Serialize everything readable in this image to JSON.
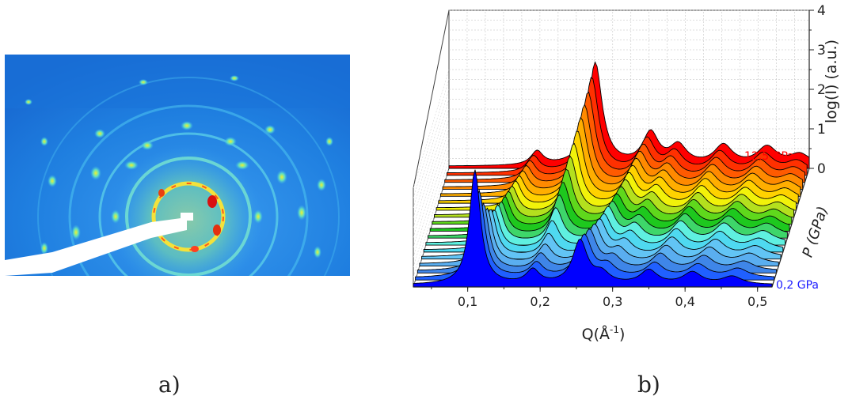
{
  "panels": {
    "a": {
      "label": "a)"
    },
    "b": {
      "label": "b)"
    }
  },
  "chart_data": {
    "type": "area",
    "xlabel_main": "Q(Å",
    "xlabel_sup": "-1",
    "xlabel_close": ")",
    "ylabel": "log(I) (a.u.)",
    "zlabel": "P (GPa)",
    "x_ticks": [
      "0,1",
      "0,2",
      "0,3",
      "0,4",
      "0,5"
    ],
    "x_tick_values": [
      0.1,
      0.2,
      0.3,
      0.4,
      0.5
    ],
    "y_ticks": [
      "0",
      "1",
      "2",
      "3",
      "4"
    ],
    "y_tick_values": [
      0,
      1,
      2,
      3,
      4
    ],
    "xlim": [
      0.025,
      0.52
    ],
    "ylim": [
      0,
      4
    ],
    "grid": true,
    "pressure_labels": {
      "low": "0,2 GPa",
      "high": "12,5 GPa"
    },
    "pressure_range": [
      0.2,
      12.5
    ],
    "colors": [
      "#0000ff",
      "#2060ff",
      "#3f86e8",
      "#5aaef0",
      "#62c4f5",
      "#4fd9f0",
      "#5ff0e0",
      "#3ed66a",
      "#1ec81e",
      "#5fd81c",
      "#b4e01e",
      "#f2f20a",
      "#ffd200",
      "#ffae00",
      "#ff8a00",
      "#ff5a00",
      "#ff3000",
      "#ff0000"
    ],
    "label_colors": {
      "low": "#1a1aff",
      "high": "#ff0000"
    },
    "series": [
      {
        "peaks": [
          [
            0.11,
            2.9
          ],
          [
            0.19,
            0.35
          ],
          [
            0.255,
            1.1
          ],
          [
            0.285,
            0.25
          ],
          [
            0.35,
            0.35
          ],
          [
            0.41,
            0.3
          ],
          [
            0.465,
            0.2
          ]
        ]
      },
      {
        "peaks": [
          [
            0.113,
            2.2
          ],
          [
            0.192,
            0.35
          ],
          [
            0.258,
            1.05
          ],
          [
            0.29,
            0.28
          ],
          [
            0.355,
            0.35
          ],
          [
            0.415,
            0.32
          ],
          [
            0.47,
            0.22
          ]
        ]
      },
      {
        "peaks": [
          [
            0.116,
            1.7
          ],
          [
            0.195,
            0.4
          ],
          [
            0.262,
            1.0
          ],
          [
            0.295,
            0.3
          ],
          [
            0.36,
            0.4
          ],
          [
            0.42,
            0.35
          ],
          [
            0.475,
            0.22
          ]
        ]
      },
      {
        "peaks": [
          [
            0.118,
            1.4
          ],
          [
            0.198,
            0.45
          ],
          [
            0.266,
            0.95
          ],
          [
            0.3,
            0.32
          ],
          [
            0.365,
            0.42
          ],
          [
            0.425,
            0.38
          ],
          [
            0.48,
            0.24
          ]
        ]
      },
      {
        "peaks": [
          [
            0.12,
            1.2
          ],
          [
            0.2,
            0.55
          ],
          [
            0.27,
            0.9
          ],
          [
            0.305,
            0.35
          ],
          [
            0.37,
            0.45
          ],
          [
            0.43,
            0.4
          ],
          [
            0.485,
            0.25
          ]
        ]
      },
      {
        "peaks": [
          [
            0.122,
            1.0
          ],
          [
            0.202,
            0.7
          ],
          [
            0.273,
            0.85
          ],
          [
            0.31,
            0.38
          ],
          [
            0.373,
            0.48
          ],
          [
            0.433,
            0.42
          ],
          [
            0.487,
            0.26
          ]
        ]
      },
      {
        "peaks": [
          [
            0.124,
            0.95
          ],
          [
            0.204,
            0.85
          ],
          [
            0.276,
            0.85
          ],
          [
            0.313,
            0.4
          ],
          [
            0.376,
            0.5
          ],
          [
            0.436,
            0.45
          ],
          [
            0.49,
            0.27
          ]
        ]
      },
      {
        "peaks": [
          [
            0.126,
            0.85
          ],
          [
            0.206,
            1.0
          ],
          [
            0.279,
            0.8
          ],
          [
            0.316,
            0.42
          ],
          [
            0.379,
            0.5
          ],
          [
            0.439,
            0.45
          ],
          [
            0.492,
            0.28
          ]
        ]
      },
      {
        "peaks": [
          [
            0.128,
            0.8
          ],
          [
            0.208,
            1.15
          ],
          [
            0.282,
            0.8
          ],
          [
            0.319,
            0.44
          ],
          [
            0.382,
            0.5
          ],
          [
            0.442,
            0.46
          ],
          [
            0.494,
            0.28
          ]
        ]
      },
      {
        "peaks": [
          [
            0.13,
            0.75
          ],
          [
            0.21,
            1.3
          ],
          [
            0.285,
            0.8
          ],
          [
            0.322,
            0.45
          ],
          [
            0.385,
            0.5
          ],
          [
            0.445,
            0.46
          ],
          [
            0.496,
            0.28
          ]
        ]
      },
      {
        "peaks": [
          [
            0.132,
            0.7
          ],
          [
            0.212,
            1.45
          ],
          [
            0.288,
            0.8
          ],
          [
            0.325,
            0.46
          ],
          [
            0.388,
            0.5
          ],
          [
            0.448,
            0.46
          ],
          [
            0.498,
            0.28
          ]
        ]
      },
      {
        "peaks": [
          [
            0.134,
            0.65
          ],
          [
            0.214,
            1.6
          ],
          [
            0.29,
            0.8
          ],
          [
            0.328,
            0.47
          ],
          [
            0.39,
            0.5
          ],
          [
            0.45,
            0.46
          ],
          [
            0.5,
            0.28
          ]
        ]
      },
      {
        "peaks": [
          [
            0.136,
            0.6
          ],
          [
            0.216,
            1.75
          ],
          [
            0.292,
            0.8
          ],
          [
            0.33,
            0.48
          ],
          [
            0.392,
            0.5
          ],
          [
            0.452,
            0.46
          ],
          [
            0.502,
            0.28
          ]
        ]
      },
      {
        "peaks": [
          [
            0.138,
            0.55
          ],
          [
            0.218,
            1.9
          ],
          [
            0.294,
            0.8
          ],
          [
            0.332,
            0.48
          ],
          [
            0.394,
            0.5
          ],
          [
            0.454,
            0.46
          ],
          [
            0.503,
            0.28
          ]
        ]
      },
      {
        "peaks": [
          [
            0.14,
            0.5
          ],
          [
            0.22,
            2.05
          ],
          [
            0.296,
            0.8
          ],
          [
            0.334,
            0.48
          ],
          [
            0.396,
            0.5
          ],
          [
            0.456,
            0.46
          ],
          [
            0.504,
            0.28
          ]
        ]
      },
      {
        "peaks": [
          [
            0.142,
            0.45
          ],
          [
            0.222,
            2.2
          ],
          [
            0.298,
            0.8
          ],
          [
            0.336,
            0.48
          ],
          [
            0.398,
            0.5
          ],
          [
            0.458,
            0.46
          ],
          [
            0.505,
            0.28
          ]
        ]
      },
      {
        "peaks": [
          [
            0.144,
            0.4
          ],
          [
            0.224,
            2.4
          ],
          [
            0.3,
            0.8
          ],
          [
            0.338,
            0.48
          ],
          [
            0.4,
            0.5
          ],
          [
            0.46,
            0.46
          ],
          [
            0.506,
            0.28
          ]
        ]
      },
      {
        "peaks": [
          [
            0.146,
            0.35
          ],
          [
            0.226,
            2.6
          ],
          [
            0.302,
            0.8
          ],
          [
            0.34,
            0.48
          ],
          [
            0.402,
            0.5
          ],
          [
            0.462,
            0.46
          ],
          [
            0.507,
            0.28
          ]
        ]
      }
    ]
  }
}
